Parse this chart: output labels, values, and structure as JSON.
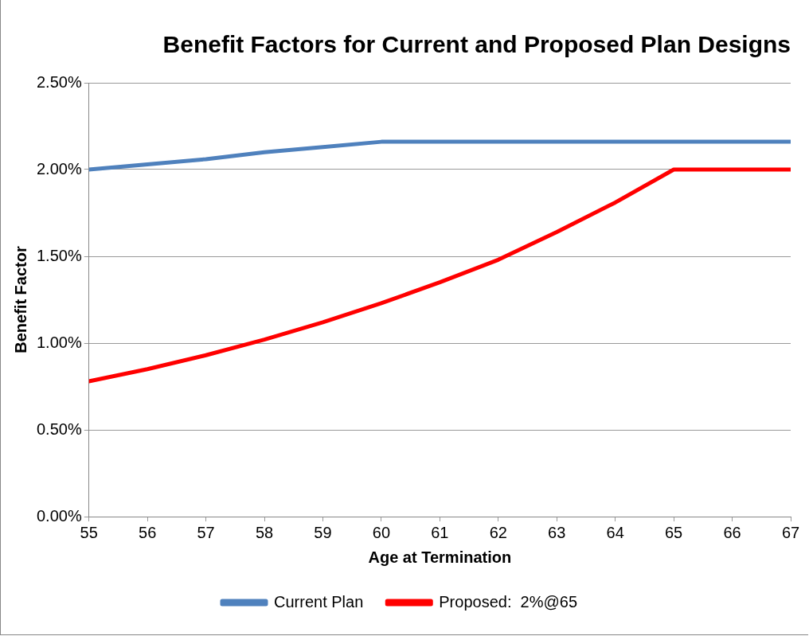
{
  "chart_data": {
    "type": "line",
    "title": "Benefit Factors for Current and Proposed Plan Designs",
    "xlabel": "Age at Termination",
    "ylabel": "Benefit Factor",
    "x": [
      55,
      56,
      57,
      58,
      59,
      60,
      61,
      62,
      63,
      64,
      65,
      66,
      67
    ],
    "series": [
      {
        "name": "Current Plan",
        "color": "#4f81bd",
        "values": [
          2.0,
          2.03,
          2.06,
          2.1,
          2.13,
          2.16,
          2.16,
          2.16,
          2.16,
          2.16,
          2.16,
          2.16,
          2.16
        ]
      },
      {
        "name": "Proposed:  2%@65",
        "color": "#ff0000",
        "values": [
          0.78,
          0.85,
          0.93,
          1.02,
          1.12,
          1.23,
          1.35,
          1.48,
          1.64,
          1.81,
          2.0,
          2.0,
          2.0
        ]
      }
    ],
    "xlim": [
      55,
      67
    ],
    "xticks": [
      55,
      56,
      57,
      58,
      59,
      60,
      61,
      62,
      63,
      64,
      65,
      66,
      67
    ],
    "ylim": [
      0,
      2.5
    ],
    "yticks": [
      {
        "value": 0,
        "label": "0.00%"
      },
      {
        "value": 0.5,
        "label": "0.50%"
      },
      {
        "value": 1,
        "label": "1.00%"
      },
      {
        "value": 1.5,
        "label": "1.50%"
      },
      {
        "value": 2,
        "label": "2.00%"
      },
      {
        "value": 2.5,
        "label": "2.50%"
      }
    ],
    "grid": "y",
    "legend": "bottom",
    "marker": "none",
    "line_style": "solid"
  }
}
